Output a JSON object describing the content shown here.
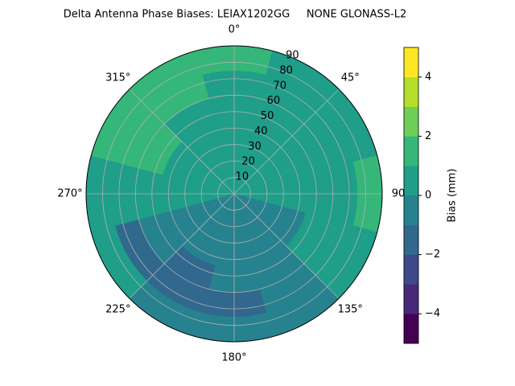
{
  "chart_data": {
    "type": "polar_contour",
    "title": "Delta Antenna Phase Biases: LEIAX1202GG     NONE GLONASS-L2",
    "theta": [
      0,
      30,
      60,
      90,
      120,
      150,
      180,
      210,
      240,
      270,
      300,
      330
    ],
    "r": [
      7.5,
      22.5,
      37.5,
      52.5,
      67.5,
      82.5
    ],
    "values": [
      [
        0.5,
        0.5,
        0.5,
        0.5,
        0.5,
        1.5
      ],
      [
        0.5,
        0.5,
        0.5,
        0.5,
        0.5,
        0.5
      ],
      [
        0.5,
        0.5,
        0.5,
        0.5,
        0.5,
        0.5
      ],
      [
        0.5,
        0.5,
        0.5,
        0.5,
        0.5,
        1.5
      ],
      [
        -0.5,
        -0.5,
        -0.5,
        0.5,
        0.5,
        0.5
      ],
      [
        -0.5,
        -0.5,
        -0.5,
        -0.5,
        -0.5,
        -0.5
      ],
      [
        -0.5,
        -0.5,
        -0.5,
        -0.5,
        -1.5,
        -0.5
      ],
      [
        -0.5,
        -0.5,
        -0.5,
        -1.5,
        -1.5,
        -0.5
      ],
      [
        -0.5,
        -0.5,
        -0.5,
        -0.5,
        -1.5,
        0.5
      ],
      [
        0.5,
        0.5,
        0.5,
        0.5,
        0.5,
        0.5
      ],
      [
        0.5,
        0.5,
        0.5,
        1.5,
        1.5,
        1.5
      ],
      [
        0.5,
        0.5,
        0.5,
        0.5,
        1.5,
        1.5
      ]
    ],
    "rlim": [
      0,
      90
    ],
    "rticks": [
      10,
      20,
      30,
      40,
      50,
      60,
      70,
      80,
      90
    ],
    "thetaticks": [
      {
        "value": 0,
        "label": "0°"
      },
      {
        "value": 45,
        "label": "45°"
      },
      {
        "value": 90,
        "label": "90"
      },
      {
        "value": 135,
        "label": "135°"
      },
      {
        "value": 180,
        "label": "180°"
      },
      {
        "value": 225,
        "label": "225°"
      },
      {
        "value": 270,
        "label": "270°"
      },
      {
        "value": 315,
        "label": "315°"
      }
    ],
    "grid": true,
    "colorbar": {
      "label": "Bias (mm)",
      "levels": [
        -5,
        -4,
        -3,
        -2,
        -1,
        0,
        1,
        2,
        3,
        4,
        5
      ],
      "colors": [
        "#440154",
        "#482878",
        "#3e4989",
        "#31688e",
        "#26828e",
        "#1f9e89",
        "#35b779",
        "#6ece58",
        "#b5de2b",
        "#fde725"
      ],
      "ticks": [
        {
          "value": -4,
          "label": "−4"
        },
        {
          "value": -2,
          "label": "−2"
        },
        0,
        2,
        4
      ]
    }
  }
}
